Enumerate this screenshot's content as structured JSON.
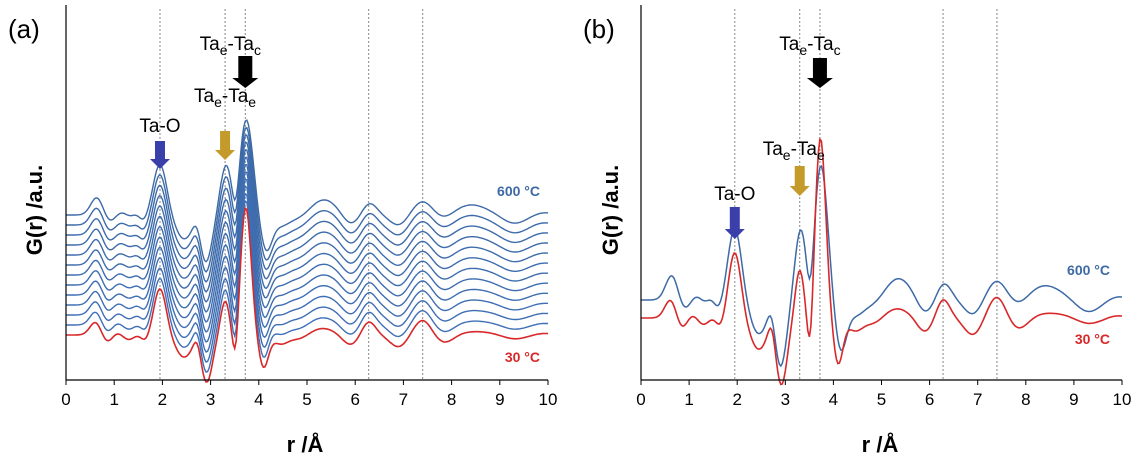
{
  "colors": {
    "hot": "#3d6aa6",
    "cold": "#d8282a",
    "blue_arrow": "#3b3faa",
    "gold_arrow": "#c49a2a",
    "black_arrow": "#000000",
    "ref_line": "#888888"
  },
  "chart_data": [
    {
      "panel": "(a)",
      "type": "line",
      "xlabel": "r /Å",
      "ylabel": "G(r) /a.u.",
      "xlim": [
        0,
        10
      ],
      "xticks": [
        "0",
        "1",
        "2",
        "3",
        "4",
        "5",
        "6",
        "7",
        "8",
        "9",
        "10"
      ],
      "ref_lines_x": [
        1.95,
        3.3,
        3.72,
        6.28,
        7.4
      ],
      "curve_count": 13,
      "series": [
        {
          "name": "600 °C",
          "color": "#3d6aa6"
        },
        {
          "name": "30 °C",
          "color": "#d8282a"
        }
      ],
      "annotations": [
        {
          "base": "Ta-O",
          "x": 1.95,
          "arrow": "blue"
        },
        {
          "base": "Ta",
          "sub1": "e",
          "mid": "-Ta",
          "sub2": "e",
          "x": 3.3,
          "arrow": "gold"
        },
        {
          "base": "Ta",
          "sub1": "e",
          "mid": "-Ta",
          "sub2": "c",
          "x": 3.72,
          "arrow": "black"
        }
      ]
    },
    {
      "panel": "(b)",
      "type": "line",
      "xlabel": "r /Å",
      "ylabel": "G(r) /a.u.",
      "xlim": [
        0,
        10
      ],
      "xticks": [
        "0",
        "1",
        "2",
        "3",
        "4",
        "5",
        "6",
        "7",
        "8",
        "9",
        "10"
      ],
      "ref_lines_x": [
        1.95,
        3.3,
        3.72,
        6.28,
        7.4
      ],
      "series": [
        {
          "name": "600 °C",
          "color": "#3d6aa6"
        },
        {
          "name": "30 °C",
          "color": "#d8282a"
        }
      ],
      "annotations": [
        {
          "base": "Ta-O",
          "x": 1.95,
          "arrow": "blue"
        },
        {
          "base": "Ta",
          "sub1": "e",
          "mid": "-Ta",
          "sub2": "e",
          "x": 3.3,
          "arrow": "gold"
        },
        {
          "base": "Ta",
          "sub1": "e",
          "mid": "-Ta",
          "sub2": "c",
          "x": 3.72,
          "arrow": "black"
        }
      ]
    }
  ]
}
